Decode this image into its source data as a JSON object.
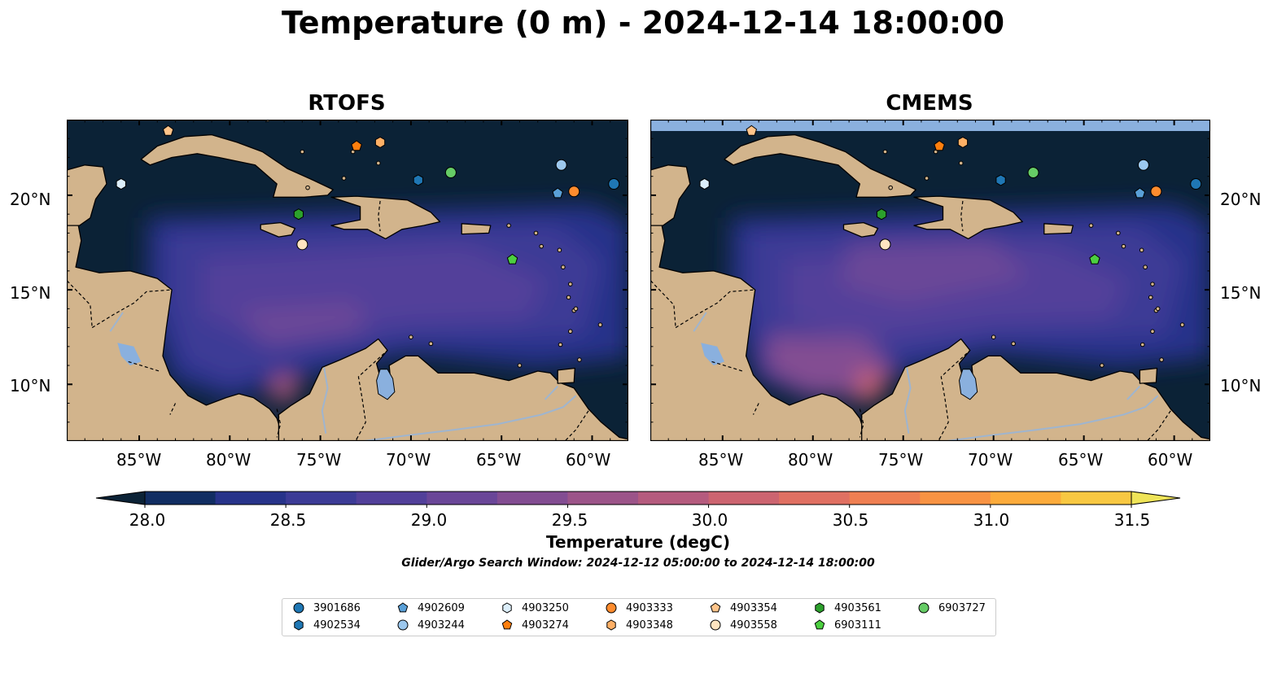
{
  "title": "Temperature (0 m) - 2024-12-14 18:00:00",
  "panels": [
    {
      "title": "RTOFS"
    },
    {
      "title": "CMEMS"
    }
  ],
  "lon_labels": [
    "85°W",
    "80°W",
    "75°W",
    "70°W",
    "65°W",
    "60°W"
  ],
  "lat_labels": [
    "20°N",
    "15°N",
    "10°N"
  ],
  "map_extent": {
    "lon": [
      -89,
      -58
    ],
    "lat": [
      7,
      24
    ]
  },
  "colorbar": {
    "label": "Temperature (degC)",
    "ticks": [
      "28.0",
      "28.5",
      "29.0",
      "29.5",
      "30.0",
      "30.5",
      "31.0",
      "31.5"
    ],
    "range": [
      28.0,
      31.5
    ],
    "colors": [
      "#0b2236",
      "#112d62",
      "#27338a",
      "#3c3b96",
      "#52409a",
      "#6a4698",
      "#834d92",
      "#9c5489",
      "#b55b7e",
      "#cc6470",
      "#e07062",
      "#ef7f52",
      "#f89343",
      "#fcab3b",
      "#f8c842",
      "#efe458"
    ],
    "extend": "both"
  },
  "colors": {
    "land": "#d2b48c",
    "lake": "#8ab0de",
    "river": "#9fb5cf"
  },
  "search_window": "Glider/Argo Search Window: 2024-12-12 05:00:00 to 2024-12-14 18:00:00",
  "legend": [
    {
      "id": "3901686",
      "marker": "circle",
      "color": "#1f77b4",
      "lon": -58.8,
      "lat": 20.6
    },
    {
      "id": "4902534",
      "marker": "hexagon",
      "color": "#1f77b4",
      "lon": -69.6,
      "lat": 20.8
    },
    {
      "id": "4902609",
      "marker": "pentagon",
      "color": "#5aa0d8",
      "lon": -61.9,
      "lat": 20.1
    },
    {
      "id": "4903244",
      "marker": "circle",
      "color": "#9cc8ee",
      "lon": -61.7,
      "lat": 21.6
    },
    {
      "id": "4903250",
      "marker": "hexagon",
      "color": "#dceefa",
      "lon": -86.0,
      "lat": 20.6
    },
    {
      "id": "4903274",
      "marker": "pentagon",
      "color": "#ff7f0e",
      "lon": -73.0,
      "lat": 22.6
    },
    {
      "id": "4903333",
      "marker": "circle",
      "color": "#ff8c2e",
      "lon": -61.0,
      "lat": 20.2
    },
    {
      "id": "4903348",
      "marker": "hexagon",
      "color": "#ffb066",
      "lon": -71.7,
      "lat": 22.8
    },
    {
      "id": "4903354",
      "marker": "pentagon",
      "color": "#ffc48a",
      "lon": -83.4,
      "lat": 23.4
    },
    {
      "id": "4903558",
      "marker": "circle",
      "color": "#ffe4c0",
      "lon": -76.0,
      "lat": 17.4
    },
    {
      "id": "4903561",
      "marker": "hexagon",
      "color": "#2ca02c",
      "lon": -76.2,
      "lat": 19.0
    },
    {
      "id": "6903111",
      "marker": "pentagon",
      "color": "#4ccf40",
      "lon": -64.4,
      "lat": 16.6
    },
    {
      "id": "6903727",
      "marker": "circle",
      "color": "#66cc66",
      "lon": -67.8,
      "lat": 21.2
    }
  ]
}
